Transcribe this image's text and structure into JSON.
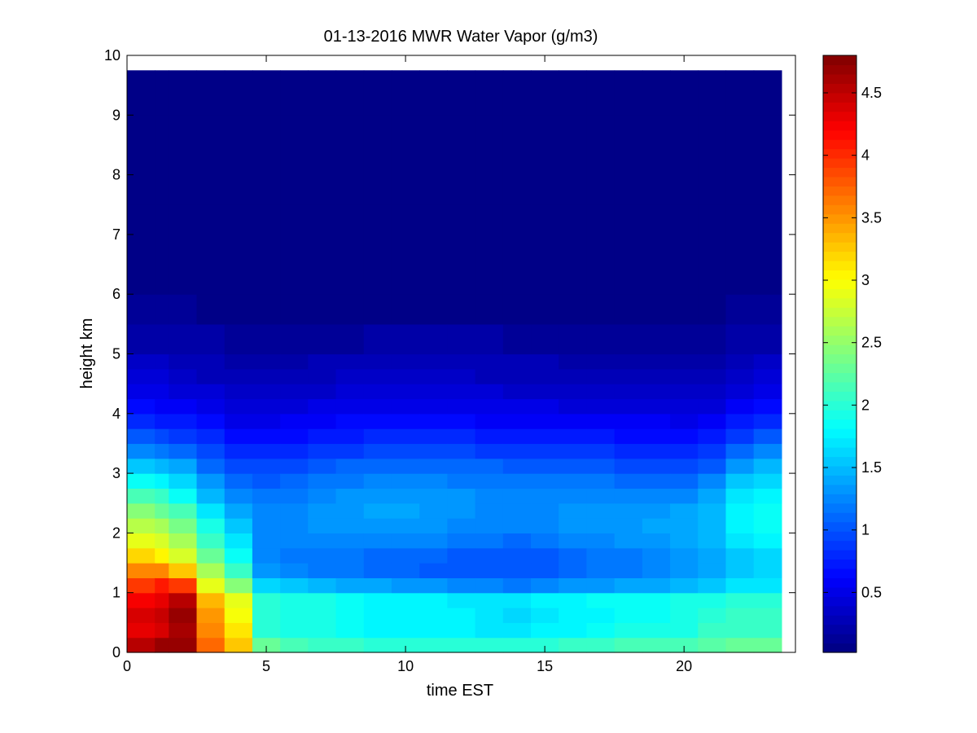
{
  "chart_data": {
    "type": "heatmap",
    "title": "01-13-2016 MWR Water Vapor (g/m3)",
    "xlabel": "time EST",
    "ylabel": "height km",
    "xlim": [
      0,
      24
    ],
    "ylim": [
      0,
      10
    ],
    "xticks": [
      "0",
      "5",
      "10",
      "15",
      "20"
    ],
    "yticks": [
      "0",
      "1",
      "2",
      "3",
      "4",
      "5",
      "6",
      "7",
      "8",
      "9",
      "10"
    ],
    "colorbar": {
      "colormap": "jet",
      "range": [
        0.02,
        4.8
      ],
      "ticks": [
        "0.5",
        "1",
        "1.5",
        "2",
        "2.5",
        "3",
        "3.5",
        "4",
        "4.5"
      ]
    },
    "x_edges": [
      0,
      1,
      1.5,
      2.5,
      3.5,
      4.5,
      5.5,
      6.5,
      7.5,
      8.5,
      9.5,
      10.5,
      11.5,
      12.5,
      13.5,
      14.5,
      15.5,
      16.5,
      17.5,
      18.5,
      19.5,
      20.5,
      21.5,
      22.5,
      23.5
    ],
    "data_top_km": 9.75,
    "profile_heights_km": [
      0,
      0.15,
      0.35,
      0.6,
      0.9,
      1.2,
      1.5,
      2.0,
      2.5,
      3.0,
      3.5,
      4.0,
      4.5,
      5.0,
      5.5,
      6.0,
      7.0,
      9.75
    ],
    "profiles": [
      {
        "time": 0.5,
        "values": [
          4.4,
          4.6,
          4.3,
          4.4,
          4.2,
          3.9,
          3.3,
          2.8,
          2.3,
          1.7,
          1.1,
          0.7,
          0.45,
          0.3,
          0.15,
          0.08,
          0.05,
          0.03
        ]
      },
      {
        "time": 1.25,
        "values": [
          4.5,
          4.7,
          4.4,
          4.5,
          4.3,
          4.0,
          3.2,
          2.7,
          2.2,
          1.6,
          1.05,
          0.65,
          0.45,
          0.28,
          0.15,
          0.08,
          0.05,
          0.03
        ]
      },
      {
        "time": 2.0,
        "values": [
          4.1,
          4.8,
          4.6,
          4.7,
          4.5,
          3.8,
          2.9,
          2.5,
          2.0,
          1.5,
          1.0,
          0.62,
          0.4,
          0.25,
          0.13,
          0.07,
          0.04,
          0.03
        ]
      },
      {
        "time": 3.0,
        "values": [
          3.1,
          3.8,
          3.6,
          3.5,
          3.3,
          2.8,
          2.4,
          2.0,
          1.6,
          1.2,
          0.85,
          0.55,
          0.35,
          0.22,
          0.12,
          0.06,
          0.04,
          0.03
        ]
      },
      {
        "time": 4.0,
        "values": [
          2.9,
          3.3,
          3.1,
          3.0,
          2.9,
          2.3,
          1.9,
          1.6,
          1.3,
          1.0,
          0.72,
          0.48,
          0.3,
          0.2,
          0.1,
          0.06,
          0.04,
          0.03
        ]
      },
      {
        "time": 5.0,
        "values": [
          2.1,
          2.3,
          2.0,
          2.0,
          2.0,
          1.5,
          1.2,
          1.3,
          1.2,
          1.0,
          0.72,
          0.48,
          0.32,
          0.2,
          0.1,
          0.06,
          0.04,
          0.03
        ]
      },
      {
        "time": 6.0,
        "values": [
          2.0,
          2.2,
          1.95,
          1.95,
          1.95,
          1.4,
          1.15,
          1.3,
          1.25,
          1.05,
          0.75,
          0.5,
          0.33,
          0.2,
          0.1,
          0.06,
          0.04,
          0.03
        ]
      },
      {
        "time": 7.0,
        "values": [
          1.9,
          2.1,
          1.9,
          1.9,
          1.9,
          1.35,
          1.1,
          1.3,
          1.3,
          1.1,
          0.8,
          0.52,
          0.35,
          0.22,
          0.11,
          0.06,
          0.04,
          0.03
        ]
      },
      {
        "time": 8.0,
        "values": [
          1.9,
          2.1,
          1.85,
          1.85,
          1.85,
          1.3,
          1.1,
          1.35,
          1.35,
          1.15,
          0.82,
          0.55,
          0.36,
          0.22,
          0.11,
          0.06,
          0.04,
          0.03
        ]
      },
      {
        "time": 9.0,
        "values": [
          1.85,
          2.05,
          1.8,
          1.8,
          1.8,
          1.25,
          1.05,
          1.35,
          1.4,
          1.2,
          0.85,
          0.56,
          0.37,
          0.23,
          0.12,
          0.06,
          0.04,
          0.03
        ]
      },
      {
        "time": 10.0,
        "values": [
          1.85,
          2.0,
          1.8,
          1.8,
          1.8,
          1.2,
          1.05,
          1.3,
          1.4,
          1.2,
          0.85,
          0.56,
          0.37,
          0.23,
          0.12,
          0.06,
          0.04,
          0.03
        ]
      },
      {
        "time": 11.0,
        "values": [
          1.8,
          2.0,
          1.75,
          1.75,
          1.75,
          1.15,
          1.0,
          1.3,
          1.35,
          1.2,
          0.85,
          0.55,
          0.36,
          0.23,
          0.12,
          0.06,
          0.04,
          0.03
        ]
      },
      {
        "time": 12.0,
        "values": [
          1.8,
          2.0,
          1.75,
          1.75,
          1.7,
          1.1,
          1.0,
          1.25,
          1.35,
          1.15,
          0.85,
          0.55,
          0.36,
          0.23,
          0.12,
          0.06,
          0.04,
          0.03
        ]
      },
      {
        "time": 13.0,
        "values": [
          1.85,
          2.0,
          1.7,
          1.7,
          1.7,
          1.1,
          0.95,
          1.25,
          1.3,
          1.15,
          0.82,
          0.54,
          0.35,
          0.22,
          0.12,
          0.06,
          0.04,
          0.03
        ]
      },
      {
        "time": 14.0,
        "values": [
          1.85,
          2.05,
          1.7,
          1.65,
          1.7,
          1.05,
          0.95,
          1.2,
          1.3,
          1.1,
          0.8,
          0.52,
          0.34,
          0.22,
          0.11,
          0.06,
          0.04,
          0.03
        ]
      },
      {
        "time": 15.0,
        "values": [
          1.9,
          2.05,
          1.75,
          1.7,
          1.75,
          1.1,
          1.0,
          1.25,
          1.3,
          1.1,
          0.8,
          0.52,
          0.34,
          0.22,
          0.11,
          0.06,
          0.04,
          0.03
        ]
      },
      {
        "time": 16.0,
        "values": [
          1.9,
          2.1,
          1.8,
          1.75,
          1.8,
          1.15,
          1.05,
          1.3,
          1.3,
          1.1,
          0.78,
          0.5,
          0.33,
          0.21,
          0.11,
          0.06,
          0.04,
          0.03
        ]
      },
      {
        "time": 17.0,
        "values": [
          1.9,
          2.1,
          1.85,
          1.8,
          1.85,
          1.2,
          1.1,
          1.3,
          1.3,
          1.1,
          0.78,
          0.5,
          0.33,
          0.21,
          0.11,
          0.06,
          0.04,
          0.03
        ]
      },
      {
        "time": 18.0,
        "values": [
          1.95,
          2.15,
          1.9,
          1.85,
          1.85,
          1.25,
          1.15,
          1.35,
          1.3,
          1.05,
          0.75,
          0.48,
          0.32,
          0.2,
          0.1,
          0.06,
          0.04,
          0.03
        ]
      },
      {
        "time": 19.0,
        "values": [
          1.95,
          2.15,
          1.9,
          1.85,
          1.85,
          1.3,
          1.2,
          1.4,
          1.3,
          1.05,
          0.75,
          0.48,
          0.32,
          0.2,
          0.1,
          0.06,
          0.04,
          0.03
        ]
      },
      {
        "time": 20.0,
        "values": [
          2.0,
          2.2,
          1.95,
          1.9,
          1.9,
          1.35,
          1.25,
          1.45,
          1.35,
          1.05,
          0.72,
          0.46,
          0.3,
          0.2,
          0.1,
          0.06,
          0.04,
          0.03
        ]
      },
      {
        "time": 21.0,
        "values": [
          2.05,
          2.25,
          2.05,
          2.0,
          1.95,
          1.45,
          1.35,
          1.5,
          1.45,
          1.15,
          0.78,
          0.5,
          0.32,
          0.2,
          0.1,
          0.06,
          0.04,
          0.03
        ]
      },
      {
        "time": 22.0,
        "values": [
          2.1,
          2.3,
          2.1,
          2.05,
          2.0,
          1.6,
          1.5,
          1.75,
          1.75,
          1.45,
          1.0,
          0.62,
          0.4,
          0.25,
          0.14,
          0.08,
          0.05,
          0.03
        ]
      },
      {
        "time": 23.0,
        "values": [
          2.15,
          2.3,
          2.1,
          2.05,
          2.0,
          1.65,
          1.55,
          1.85,
          1.85,
          1.6,
          1.1,
          0.68,
          0.45,
          0.28,
          0.15,
          0.08,
          0.05,
          0.03
        ]
      }
    ]
  }
}
